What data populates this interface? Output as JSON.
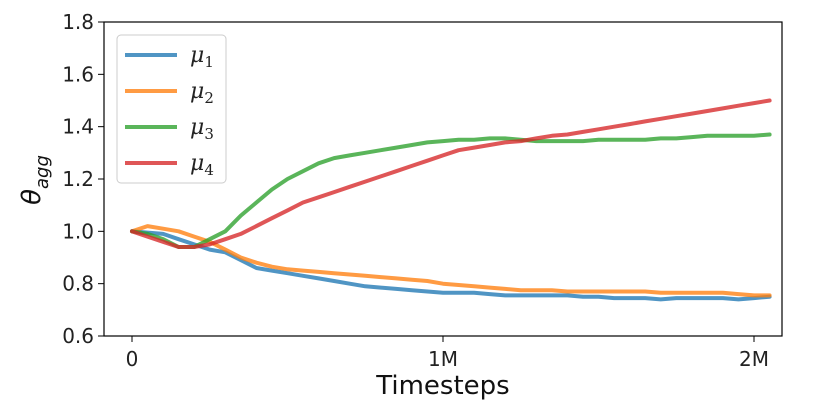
{
  "chart_data": {
    "type": "line",
    "title": "",
    "xlabel": "Timesteps",
    "ylabel": "θ",
    "ylabel_subscript": "agg",
    "xlim": [
      -90000,
      2090000
    ],
    "ylim": [
      0.6,
      1.8
    ],
    "xticks": [
      0,
      1000000,
      2000000
    ],
    "xtick_labels": [
      "0",
      "1M",
      "2M"
    ],
    "yticks": [
      0.6,
      0.8,
      1.0,
      1.2,
      1.4,
      1.6,
      1.8
    ],
    "ytick_labels": [
      "0.6",
      "0.8",
      "1.0",
      "1.2",
      "1.4",
      "1.6",
      "1.8"
    ],
    "legend_position": "upper-left",
    "grid": false,
    "x": [
      0,
      50000,
      100000,
      150000,
      200000,
      250000,
      300000,
      350000,
      400000,
      450000,
      500000,
      550000,
      600000,
      650000,
      700000,
      750000,
      800000,
      850000,
      900000,
      950000,
      1000000,
      1050000,
      1100000,
      1150000,
      1200000,
      1250000,
      1300000,
      1350000,
      1400000,
      1450000,
      1500000,
      1550000,
      1600000,
      1650000,
      1700000,
      1750000,
      1800000,
      1850000,
      1900000,
      1950000,
      2000000,
      2050000
    ],
    "series": [
      {
        "name": "μ",
        "subscript": "1",
        "color": "#1f77b4",
        "values": [
          1.0,
          0.995,
          0.99,
          0.97,
          0.95,
          0.93,
          0.92,
          0.89,
          0.86,
          0.85,
          0.84,
          0.83,
          0.82,
          0.81,
          0.8,
          0.79,
          0.785,
          0.78,
          0.775,
          0.77,
          0.765,
          0.765,
          0.765,
          0.76,
          0.755,
          0.755,
          0.755,
          0.755,
          0.755,
          0.75,
          0.75,
          0.745,
          0.745,
          0.745,
          0.74,
          0.745,
          0.745,
          0.745,
          0.745,
          0.74,
          0.745,
          0.75
        ]
      },
      {
        "name": "μ",
        "subscript": "2",
        "color": "#ff7f0e",
        "values": [
          1.0,
          1.02,
          1.01,
          1.0,
          0.98,
          0.96,
          0.93,
          0.9,
          0.88,
          0.865,
          0.855,
          0.85,
          0.845,
          0.84,
          0.835,
          0.83,
          0.825,
          0.82,
          0.815,
          0.81,
          0.8,
          0.795,
          0.79,
          0.785,
          0.78,
          0.775,
          0.775,
          0.775,
          0.77,
          0.77,
          0.77,
          0.77,
          0.77,
          0.77,
          0.765,
          0.765,
          0.765,
          0.765,
          0.765,
          0.76,
          0.755,
          0.755
        ]
      },
      {
        "name": "μ",
        "subscript": "3",
        "color": "#2ca02c",
        "values": [
          1.0,
          0.99,
          0.97,
          0.94,
          0.94,
          0.97,
          1.0,
          1.06,
          1.11,
          1.16,
          1.2,
          1.23,
          1.26,
          1.28,
          1.29,
          1.3,
          1.31,
          1.32,
          1.33,
          1.34,
          1.345,
          1.35,
          1.35,
          1.355,
          1.355,
          1.35,
          1.345,
          1.345,
          1.345,
          1.345,
          1.35,
          1.35,
          1.35,
          1.35,
          1.355,
          1.355,
          1.36,
          1.365,
          1.365,
          1.365,
          1.365,
          1.37
        ]
      },
      {
        "name": "μ",
        "subscript": "4",
        "color": "#d62728",
        "values": [
          1.0,
          0.98,
          0.96,
          0.94,
          0.94,
          0.95,
          0.97,
          0.99,
          1.02,
          1.05,
          1.08,
          1.11,
          1.13,
          1.15,
          1.17,
          1.19,
          1.21,
          1.23,
          1.25,
          1.27,
          1.29,
          1.31,
          1.32,
          1.33,
          1.34,
          1.345,
          1.355,
          1.365,
          1.37,
          1.38,
          1.39,
          1.4,
          1.41,
          1.42,
          1.43,
          1.44,
          1.45,
          1.46,
          1.47,
          1.48,
          1.49,
          1.5
        ]
      }
    ]
  }
}
